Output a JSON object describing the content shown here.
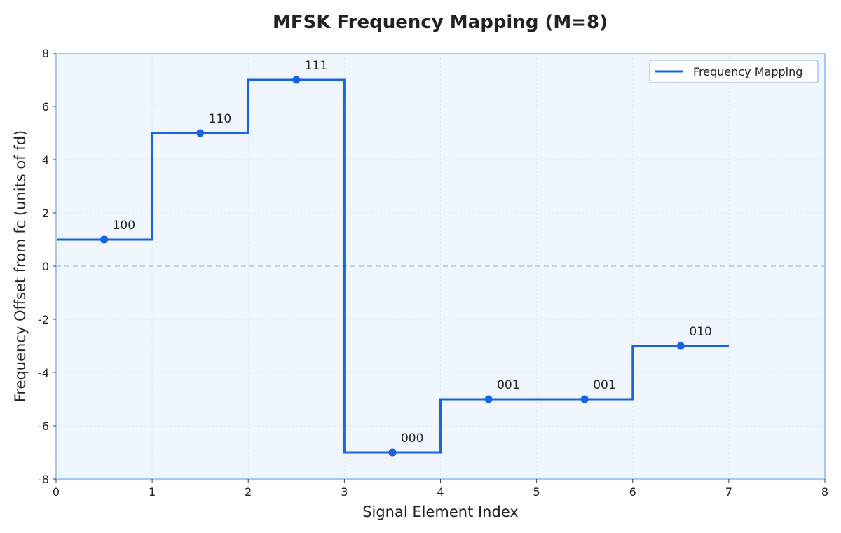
{
  "chart_data": {
    "type": "line",
    "style": "step",
    "title": "MFSK Frequency Mapping (M=8)",
    "xlabel": "Signal Element Index",
    "ylabel": "Frequency Offset from fc (units of fd)",
    "xlim": [
      0,
      8
    ],
    "ylim": [
      -8,
      8
    ],
    "xticks": [
      0,
      1,
      2,
      3,
      4,
      5,
      6,
      7,
      8
    ],
    "yticks": [
      -8,
      -6,
      -4,
      -2,
      0,
      2,
      4,
      6,
      8
    ],
    "grid": true,
    "zero_line": true,
    "legend_position": "top-right",
    "series": [
      {
        "name": "Frequency Mapping",
        "color": "#1a63e0",
        "steps": [
          {
            "x_start": 0,
            "x_end": 1,
            "y": 1
          },
          {
            "x_start": 1,
            "x_end": 2,
            "y": 5
          },
          {
            "x_start": 2,
            "x_end": 3,
            "y": 7
          },
          {
            "x_start": 3,
            "x_end": 4,
            "y": -7
          },
          {
            "x_start": 4,
            "x_end": 5,
            "y": -5
          },
          {
            "x_start": 5,
            "x_end": 6,
            "y": -5
          },
          {
            "x_start": 6,
            "x_end": 7,
            "y": -3
          }
        ],
        "points": [
          {
            "x": 0.5,
            "y": 1,
            "label": "100"
          },
          {
            "x": 1.5,
            "y": 5,
            "label": "110"
          },
          {
            "x": 2.5,
            "y": 7,
            "label": "111"
          },
          {
            "x": 3.5,
            "y": -7,
            "label": "000"
          },
          {
            "x": 4.5,
            "y": -5,
            "label": "001"
          },
          {
            "x": 5.5,
            "y": -5,
            "label": "001"
          },
          {
            "x": 6.5,
            "y": -3,
            "label": "010"
          }
        ]
      }
    ],
    "colors": {
      "plot_background": "#f0f6fd",
      "frame": "#a8c8f0",
      "grid": "#dde7f3",
      "zero_line": "#b9d0ee"
    }
  }
}
